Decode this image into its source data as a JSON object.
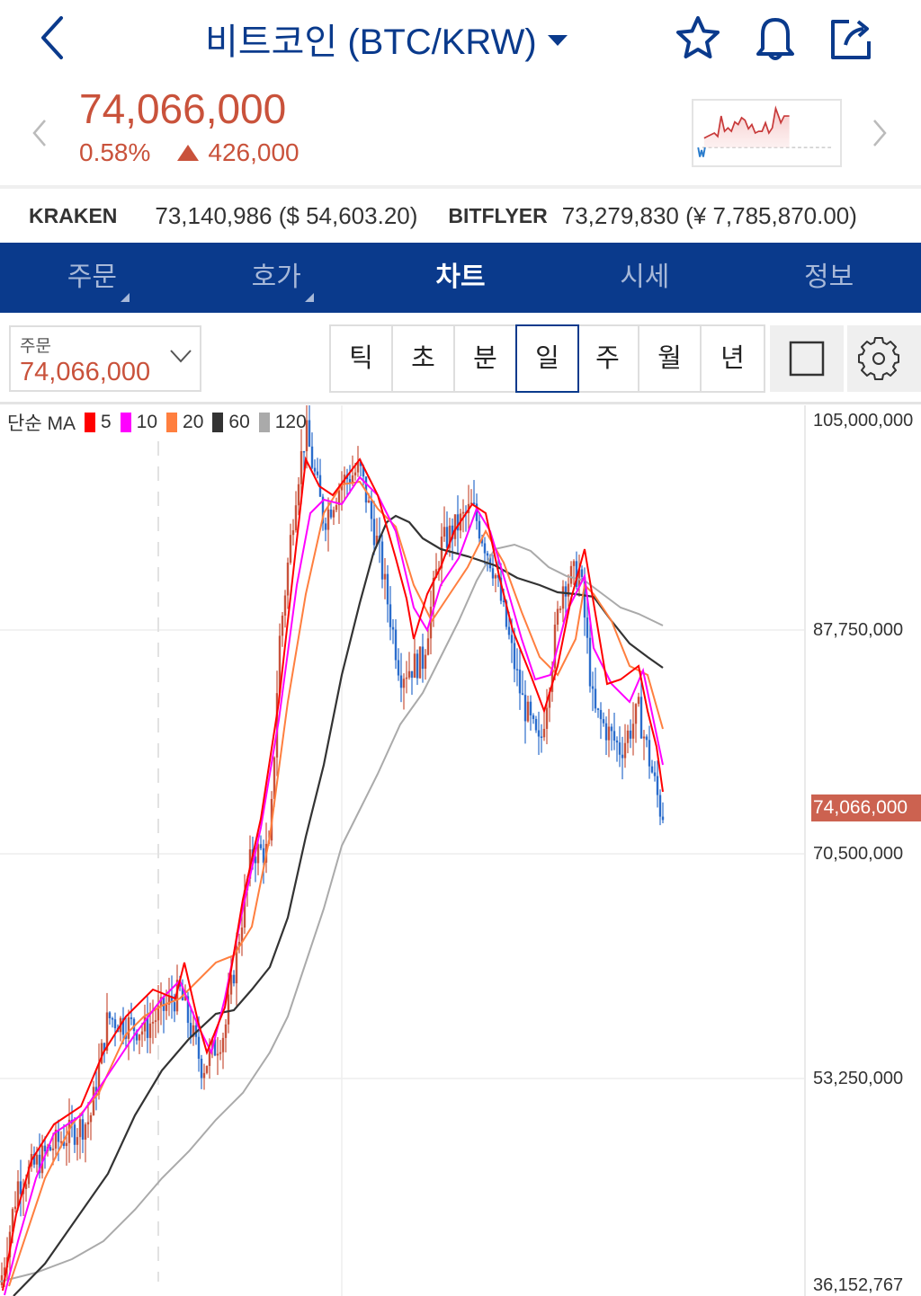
{
  "header": {
    "title": "비트코인 (BTC/KRW)",
    "back_icon": "chevron-left-icon",
    "icons": [
      "star-icon",
      "bell-icon",
      "share-icon"
    ]
  },
  "price": {
    "current": "74,066,000",
    "change_pct": "0.58%",
    "change_abs": "426,000",
    "direction": "up",
    "color": "#c9523b"
  },
  "exchanges": [
    {
      "name": "KRAKEN",
      "value": "73,140,986 ($ 54,603.20)"
    },
    {
      "name": "BITFLYER",
      "value": "73,279,830 (¥ 7,785,870.00)"
    }
  ],
  "tabs": [
    {
      "label": "주문",
      "active": false,
      "corner": true
    },
    {
      "label": "호가",
      "active": false,
      "corner": true
    },
    {
      "label": "차트",
      "active": true,
      "corner": false
    },
    {
      "label": "시세",
      "active": false,
      "corner": false
    },
    {
      "label": "정보",
      "active": false,
      "corner": false
    }
  ],
  "toolbar": {
    "order_label": "주문",
    "order_value": "74,066,000",
    "periods": [
      "틱",
      "초",
      "분",
      "일",
      "주",
      "월",
      "년"
    ],
    "active_period": "일"
  },
  "chart_data": {
    "type": "candlestick",
    "title": "",
    "legend_title": "단순 MA",
    "ma_series": [
      {
        "name": "5",
        "color": "#ff0000"
      },
      {
        "name": "10",
        "color": "#ff00ff"
      },
      {
        "name": "20",
        "color": "#ff7f3f"
      },
      {
        "name": "60",
        "color": "#333333"
      },
      {
        "name": "120",
        "color": "#aaaaaa"
      }
    ],
    "up_color": "#c9523b",
    "down_color": "#2a6ccc",
    "y_ticks": [
      "105,000,000",
      "87,750,000",
      "70,500,000",
      "53,250,000",
      "36,152,767"
    ],
    "y_tick_values": [
      105000000,
      87750000,
      70500000,
      53250000,
      36152767
    ],
    "ylim": [
      36152767,
      106000000
    ],
    "current_price_label": "74,066,000",
    "current_price": 74066000,
    "grid": true,
    "approx_close_path": [
      [
        0,
        37000000
      ],
      [
        20,
        45000000
      ],
      [
        60,
        48000000
      ],
      [
        100,
        50000000
      ],
      [
        120,
        58000000
      ],
      [
        160,
        57000000
      ],
      [
        200,
        60000000
      ],
      [
        225,
        54000000
      ],
      [
        250,
        57000000
      ],
      [
        280,
        71000000
      ],
      [
        300,
        71000000
      ],
      [
        310,
        87000000
      ],
      [
        330,
        100000000
      ],
      [
        340,
        104000000
      ],
      [
        360,
        97000000
      ],
      [
        380,
        100000000
      ],
      [
        400,
        101000000
      ],
      [
        420,
        95000000
      ],
      [
        445,
        85000000
      ],
      [
        470,
        86000000
      ],
      [
        490,
        95000000
      ],
      [
        525,
        98000000
      ],
      [
        550,
        93000000
      ],
      [
        580,
        83000000
      ],
      [
        600,
        79000000
      ],
      [
        625,
        92000000
      ],
      [
        645,
        93000000
      ],
      [
        660,
        82000000
      ],
      [
        690,
        79000000
      ],
      [
        710,
        82000000
      ],
      [
        735,
        74066000
      ]
    ]
  }
}
